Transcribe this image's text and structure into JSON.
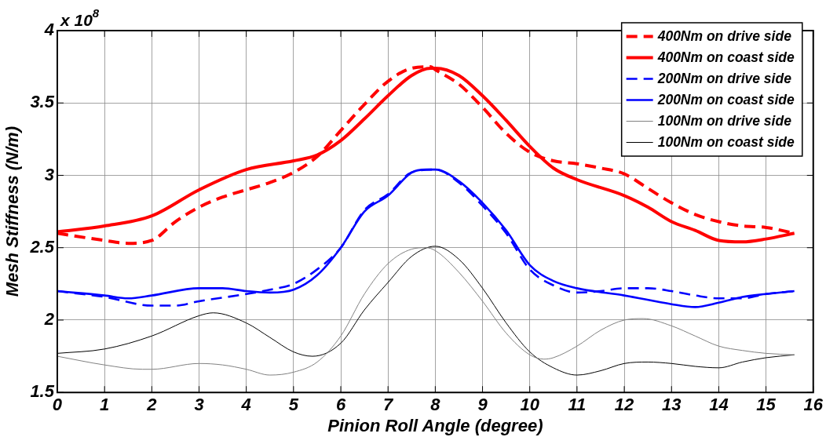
{
  "chart_data": {
    "type": "line",
    "xlabel": "Pinion Roll Angle (degree)",
    "ylabel": "Mesh Stiffness (N/m)",
    "annotations": [
      "x 10$^{8}$"
    ],
    "xlim": [
      0,
      16
    ],
    "xticks": [
      0,
      1,
      2,
      3,
      4,
      5,
      6,
      7,
      8,
      9,
      10,
      11,
      12,
      13,
      14,
      15,
      16
    ],
    "ylim": [
      1.5,
      4
    ],
    "yticks": [
      1.5,
      2,
      2.5,
      3,
      3.5,
      4
    ],
    "grid": true,
    "legend": "top right",
    "marker": "none",
    "series": [
      {
        "name": "400Nm on drive side",
        "color": "#ff0000",
        "line_style": "dashed",
        "x": [
          0,
          1,
          1.5,
          2,
          2.5,
          3,
          3.5,
          4,
          4.5,
          5,
          5.5,
          6,
          6.5,
          7,
          7.5,
          7.9,
          8,
          8.5,
          9,
          9.5,
          10,
          10.5,
          11,
          11.5,
          12,
          12.5,
          13,
          13.5,
          14,
          14.5,
          15,
          15.6
        ],
        "values": [
          2.6,
          2.55,
          2.53,
          2.55,
          2.68,
          2.78,
          2.85,
          2.9,
          2.95,
          3.02,
          3.13,
          3.31,
          3.49,
          3.65,
          3.74,
          3.75,
          3.73,
          3.63,
          3.47,
          3.29,
          3.16,
          3.1,
          3.08,
          3.05,
          3.01,
          2.91,
          2.81,
          2.73,
          2.68,
          2.65,
          2.64,
          2.6
        ]
      },
      {
        "name": "400Nm on coast side",
        "color": "#ff0000",
        "line_style": "solid",
        "x": [
          0,
          1,
          2,
          3,
          4,
          5,
          5.5,
          6,
          6.5,
          7,
          7.5,
          7.9,
          8,
          8.5,
          9,
          9.5,
          10,
          10.5,
          11,
          12,
          12.5,
          13,
          13.5,
          14,
          14.5,
          15,
          15.6
        ],
        "values": [
          2.61,
          2.65,
          2.72,
          2.9,
          3.04,
          3.1,
          3.14,
          3.24,
          3.39,
          3.55,
          3.69,
          3.74,
          3.74,
          3.69,
          3.55,
          3.38,
          3.2,
          3.05,
          2.97,
          2.86,
          2.78,
          2.68,
          2.62,
          2.55,
          2.54,
          2.56,
          2.6
        ]
      },
      {
        "name": "200Nm on drive side",
        "color": "#0000ff",
        "line_style": "dashed",
        "x": [
          0,
          1,
          2,
          2.5,
          3,
          4,
          4.5,
          5,
          5.5,
          6,
          6.5,
          7,
          7.5,
          8,
          8.5,
          9,
          9.5,
          10,
          10.5,
          11,
          11.5,
          12,
          12.5,
          13,
          13.5,
          14,
          14.5,
          15,
          15.6
        ],
        "values": [
          2.2,
          2.16,
          2.1,
          2.1,
          2.13,
          2.18,
          2.21,
          2.25,
          2.35,
          2.5,
          2.76,
          2.87,
          3.02,
          3.04,
          2.95,
          2.79,
          2.6,
          2.35,
          2.24,
          2.19,
          2.2,
          2.22,
          2.22,
          2.2,
          2.17,
          2.15,
          2.15,
          2.18,
          2.2
        ]
      },
      {
        "name": "200Nm on coast side",
        "color": "#0000ff",
        "line_style": "solid",
        "x": [
          0,
          1,
          1.5,
          2,
          3,
          3.5,
          4,
          4.5,
          5,
          5.5,
          6,
          6.5,
          7,
          7.5,
          7.8,
          8,
          8.5,
          9,
          9.5,
          10,
          10.5,
          11,
          12,
          13,
          13.5,
          14,
          14.5,
          15,
          15.6
        ],
        "values": [
          2.2,
          2.17,
          2.15,
          2.17,
          2.22,
          2.22,
          2.2,
          2.19,
          2.21,
          2.31,
          2.5,
          2.75,
          2.86,
          3.02,
          3.04,
          3.04,
          2.96,
          2.81,
          2.62,
          2.38,
          2.27,
          2.22,
          2.17,
          2.11,
          2.09,
          2.12,
          2.16,
          2.18,
          2.2
        ]
      },
      {
        "name": "100Nm on drive side",
        "color": "#808080",
        "line_style": "solid",
        "x": [
          0,
          1,
          1.8,
          2,
          3,
          3.5,
          4,
          4.5,
          5,
          5.5,
          6,
          6.5,
          7,
          7.5,
          7.8,
          8,
          8.5,
          9,
          9.5,
          10,
          10.3,
          10.5,
          11,
          11.5,
          12,
          12.4,
          13,
          13.5,
          14,
          14.5,
          15,
          15.6
        ],
        "values": [
          1.75,
          1.69,
          1.66,
          1.66,
          1.7,
          1.69,
          1.66,
          1.62,
          1.64,
          1.71,
          1.89,
          2.18,
          2.39,
          2.49,
          2.5,
          2.48,
          2.33,
          2.13,
          1.91,
          1.76,
          1.73,
          1.74,
          1.82,
          1.93,
          2.0,
          2.01,
          1.96,
          1.89,
          1.82,
          1.79,
          1.77,
          1.76
        ]
      },
      {
        "name": "100Nm on coast side",
        "color": "#000000",
        "line_style": "solid",
        "x": [
          0,
          1,
          2,
          3,
          3.3,
          4,
          4.5,
          5,
          5.4,
          6,
          6.5,
          7,
          7.5,
          8,
          8.5,
          9,
          9.5,
          10,
          10.5,
          11,
          11.5,
          12,
          12.5,
          13,
          13.5,
          14,
          14.5,
          15,
          15.6
        ],
        "values": [
          1.77,
          1.8,
          1.89,
          2.03,
          2.05,
          1.98,
          1.88,
          1.78,
          1.75,
          1.84,
          2.07,
          2.26,
          2.44,
          2.51,
          2.42,
          2.22,
          1.98,
          1.78,
          1.67,
          1.62,
          1.65,
          1.7,
          1.71,
          1.7,
          1.68,
          1.67,
          1.71,
          1.74,
          1.76
        ]
      }
    ]
  }
}
